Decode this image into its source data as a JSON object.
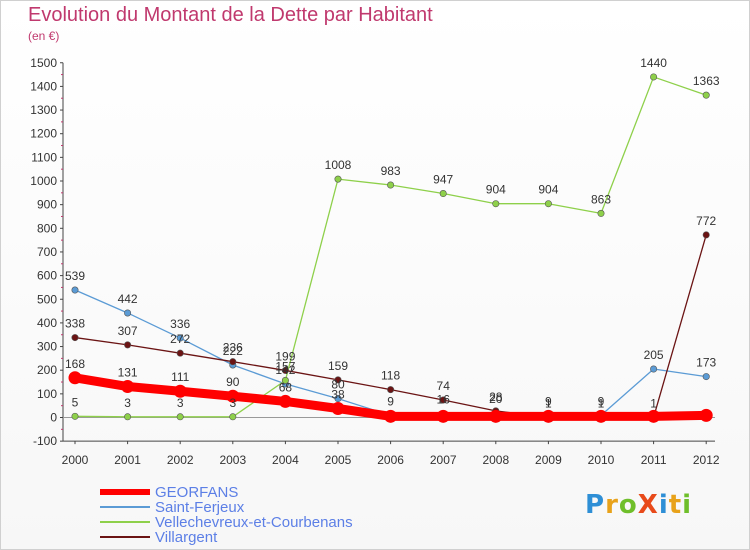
{
  "title": "Evolution du Montant de la Dette par Habitant",
  "subtitle": "(en €)",
  "logo_text": "ProXiti",
  "colors": {
    "title": "#c0396e",
    "legend_text": "#5c7fe6",
    "axis": "#333333"
  },
  "chart_data": {
    "type": "line",
    "x": [
      "2000",
      "2001",
      "2002",
      "2003",
      "2004",
      "2005",
      "2006",
      "2007",
      "2008",
      "2009",
      "2010",
      "2011",
      "2012"
    ],
    "ylim": [
      -100,
      1500
    ],
    "yticks": [
      -100,
      0,
      100,
      200,
      300,
      400,
      500,
      600,
      700,
      800,
      900,
      1000,
      1100,
      1200,
      1300,
      1400,
      1500
    ],
    "grid": false,
    "legend_position": "bottom-left",
    "series": [
      {
        "name": "GEORFANS",
        "color": "#ff0000",
        "values": [
          168,
          131,
          111,
          90,
          68,
          38,
          5,
          5,
          5,
          5,
          5,
          5,
          9
        ]
      },
      {
        "name": "Saint-Ferjeux",
        "color": "#5b9bd5",
        "values": [
          539,
          442,
          336,
          222,
          142,
          80,
          9,
          16,
          20,
          9,
          9,
          205,
          173
        ]
      },
      {
        "name": "Vellechevreux-et-Courbenans",
        "color": "#8ed04a",
        "values": [
          5,
          3,
          3,
          3,
          157,
          1008,
          983,
          947,
          904,
          904,
          863,
          1440,
          1363
        ]
      },
      {
        "name": "Villargent",
        "color": "#6b1414",
        "values": [
          338,
          307,
          272,
          236,
          199,
          159,
          118,
          74,
          28,
          1,
          1,
          1,
          772
        ]
      }
    ],
    "data_labels": [
      [
        "168",
        "131",
        "111",
        "90",
        "68",
        "38",
        "",
        "",
        "",
        "",
        "",
        "",
        ""
      ],
      [
        "539",
        "442",
        "336",
        "222",
        "142",
        "80",
        "9",
        "16",
        "20",
        "9",
        "9",
        "205",
        "173"
      ],
      [
        "5",
        "3",
        "3",
        "3",
        "157",
        "1008",
        "983",
        "947",
        "904",
        "904",
        "863",
        "1440",
        "1363"
      ],
      [
        "338",
        "307",
        "272",
        "236",
        "199",
        "159",
        "118",
        "74",
        "28",
        "1",
        "1",
        "1",
        "772"
      ]
    ]
  }
}
